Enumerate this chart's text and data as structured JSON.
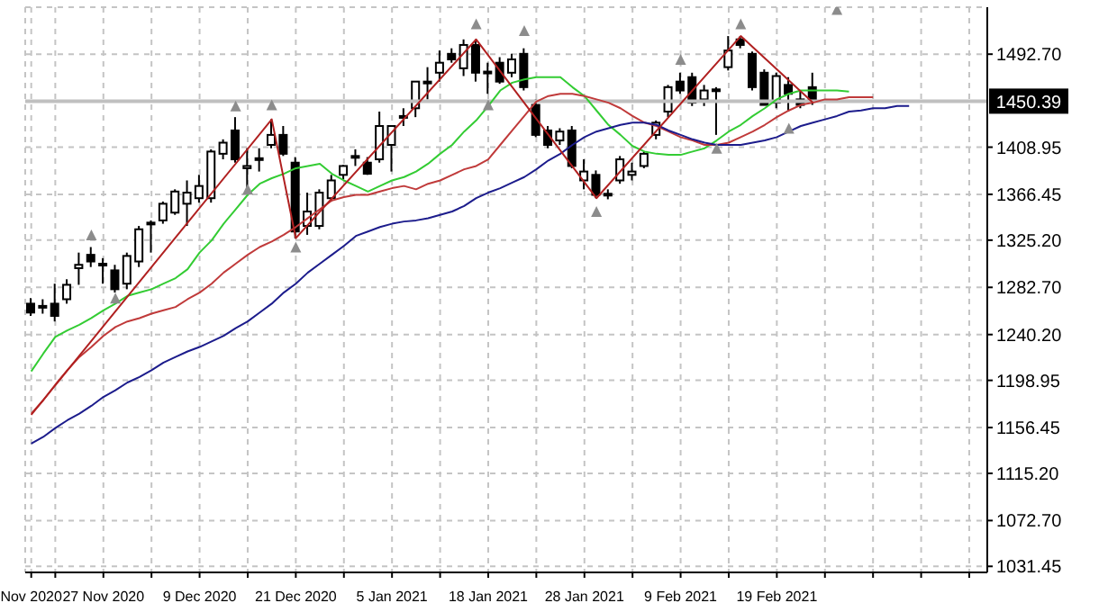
{
  "chart_data": {
    "type": "candlestick",
    "categories": [
      "Nov 2020",
      null,
      null,
      null,
      null,
      null,
      "27 Nov 2020",
      null,
      null,
      null,
      null,
      null,
      null,
      null,
      "9 Dec 2020",
      null,
      null,
      null,
      null,
      null,
      null,
      null,
      "21 Dec 2020",
      null,
      null,
      null,
      null,
      null,
      null,
      null,
      "5 Jan 2021",
      null,
      null,
      null,
      null,
      null,
      null,
      null,
      "18 Jan 2021",
      null,
      null,
      null,
      null,
      null,
      null,
      null,
      "28 Jan 2021",
      null,
      null,
      null,
      null,
      null,
      null,
      null,
      "9 Feb 2021",
      null,
      null,
      null,
      null,
      null,
      null,
      null,
      "19 Feb 2021",
      null,
      null,
      null,
      null,
      null,
      null,
      null,
      null,
      null,
      null,
      null,
      null,
      null,
      null,
      null,
      null,
      null
    ],
    "ohlc": [
      [
        1268,
        1273,
        1257,
        1260
      ],
      [
        1265,
        1272,
        1259,
        1266
      ],
      [
        1268,
        1286,
        1252,
        1257
      ],
      [
        1272,
        1290,
        1268,
        1285
      ],
      [
        1300,
        1314,
        1285,
        1303
      ],
      [
        1312,
        1319,
        1301,
        1306
      ],
      [
        1304,
        1309,
        1286,
        1303
      ],
      [
        1298,
        1303,
        1278,
        1281
      ],
      [
        1286,
        1314,
        1281,
        1311
      ],
      [
        1306,
        1338,
        1301,
        1335
      ],
      [
        1340,
        1343,
        1314,
        1341
      ],
      [
        1343,
        1360,
        1340,
        1358
      ],
      [
        1350,
        1371,
        1348,
        1369
      ],
      [
        1358,
        1379,
        1338,
        1368
      ],
      [
        1363,
        1384,
        1359,
        1374
      ],
      [
        1363,
        1407,
        1359,
        1405
      ],
      [
        1403,
        1416,
        1398,
        1413
      ],
      [
        1424,
        1436,
        1395,
        1398
      ],
      [
        1390,
        1408,
        1371,
        1392
      ],
      [
        1398,
        1408,
        1387,
        1399
      ],
      [
        1411,
        1434,
        1408,
        1420
      ],
      [
        1420,
        1428,
        1401,
        1403
      ],
      [
        1395,
        1400,
        1327,
        1333
      ],
      [
        1338,
        1368,
        1330,
        1351
      ],
      [
        1338,
        1371,
        1335,
        1368
      ],
      [
        1363,
        1384,
        1360,
        1379
      ],
      [
        1384,
        1393,
        1380,
        1392
      ],
      [
        1400,
        1407,
        1392,
        1401
      ],
      [
        1395,
        1400,
        1384,
        1385
      ],
      [
        1398,
        1441,
        1395,
        1428
      ],
      [
        1411,
        1428,
        1387,
        1428
      ],
      [
        1436,
        1444,
        1428,
        1437
      ],
      [
        1444,
        1468,
        1436,
        1468
      ],
      [
        1467,
        1481,
        1452,
        1468
      ],
      [
        1476,
        1496,
        1468,
        1485
      ],
      [
        1493,
        1498,
        1485,
        1488
      ],
      [
        1480,
        1506,
        1473,
        1501
      ],
      [
        1501,
        1506,
        1468,
        1476
      ],
      [
        1476,
        1485,
        1457,
        1477
      ],
      [
        1485,
        1490,
        1466,
        1468
      ],
      [
        1476,
        1493,
        1472,
        1488
      ],
      [
        1493,
        1498,
        1460,
        1463
      ],
      [
        1447,
        1452,
        1418,
        1420
      ],
      [
        1424,
        1428,
        1408,
        1411
      ],
      [
        1415,
        1426,
        1411,
        1423
      ],
      [
        1424,
        1428,
        1390,
        1392
      ],
      [
        1379,
        1398,
        1371,
        1387
      ],
      [
        1384,
        1388,
        1363,
        1366
      ],
      [
        1366,
        1371,
        1362,
        1367
      ],
      [
        1379,
        1401,
        1376,
        1398
      ],
      [
        1384,
        1395,
        1379,
        1387
      ],
      [
        1392,
        1405,
        1390,
        1403
      ],
      [
        1420,
        1433,
        1416,
        1431
      ],
      [
        1441,
        1465,
        1436,
        1463
      ],
      [
        1468,
        1476,
        1457,
        1460
      ],
      [
        1472,
        1476,
        1446,
        1449
      ],
      [
        1452,
        1465,
        1446,
        1460
      ],
      [
        1460,
        1463,
        1420,
        1461
      ],
      [
        1481,
        1509,
        1478,
        1496
      ],
      [
        1506,
        1509,
        1498,
        1501
      ],
      [
        1493,
        1495,
        1460,
        1463
      ],
      [
        1476,
        1479,
        1447,
        1447
      ],
      [
        1449,
        1476,
        1444,
        1473
      ],
      [
        1465,
        1472,
        1441,
        1457
      ],
      [
        1452,
        1460,
        1444,
        1447
      ],
      [
        1463,
        1476,
        1447,
        1450
      ],
      null,
      null,
      null,
      null,
      null,
      null,
      null,
      null,
      null,
      null,
      null,
      null,
      null,
      null
    ],
    "series": [
      {
        "type": "line",
        "color": "#33cc33",
        "values": [
          1207,
          1223,
          1238,
          1244,
          1249,
          1255,
          1262,
          1268,
          1275,
          1278,
          1281,
          1286,
          1291,
          1299,
          1314,
          1325,
          1340,
          1353,
          1366,
          1376,
          1381,
          1385,
          1390,
          1392,
          1394,
          1385,
          1379,
          1374,
          1369,
          1374,
          1379,
          1382,
          1387,
          1394,
          1403,
          1411,
          1423,
          1433,
          1446,
          1460,
          1467,
          1470,
          1472,
          1472,
          1472,
          1463,
          1455,
          1442,
          1429,
          1420,
          1410,
          1405,
          1403,
          1402,
          1402,
          1405,
          1408,
          1415,
          1423,
          1429,
          1437,
          1444,
          1452,
          1457,
          1460,
          1460,
          1460,
          1460,
          1459,
          null,
          null,
          null,
          null,
          null,
          null,
          null,
          null,
          null,
          null,
          null
        ]
      },
      {
        "type": "line",
        "color": "#c03a3a",
        "values": [
          1169,
          1181,
          1195,
          1208,
          1220,
          1229,
          1239,
          1247,
          1252,
          1255,
          1259,
          1262,
          1265,
          1272,
          1278,
          1286,
          1296,
          1304,
          1312,
          1319,
          1324,
          1330,
          1337,
          1345,
          1353,
          1361,
          1364,
          1366,
          1366,
          1369,
          1372,
          1374,
          1371,
          1376,
          1379,
          1384,
          1389,
          1392,
          1398,
          1411,
          1424,
          1437,
          1450,
          1455,
          1457,
          1457,
          1455,
          1452,
          1449,
          1444,
          1437,
          1431,
          1428,
          1423,
          1418,
          1415,
          1411,
          1411,
          1413,
          1418,
          1423,
          1429,
          1436,
          1442,
          1447,
          1449,
          1452,
          1452,
          1454,
          1454,
          1454,
          null,
          null,
          null,
          null,
          null,
          null,
          null,
          null,
          null
        ]
      },
      {
        "type": "line",
        "color": "#1c1c8c",
        "values": [
          1142,
          1148,
          1156,
          1163,
          1169,
          1176,
          1184,
          1190,
          1197,
          1202,
          1208,
          1215,
          1220,
          1225,
          1229,
          1234,
          1239,
          1246,
          1252,
          1260,
          1268,
          1278,
          1286,
          1296,
          1304,
          1312,
          1320,
          1329,
          1333,
          1337,
          1340,
          1342,
          1343,
          1345,
          1348,
          1351,
          1356,
          1363,
          1368,
          1372,
          1377,
          1382,
          1389,
          1397,
          1403,
          1411,
          1418,
          1423,
          1426,
          1429,
          1431,
          1431,
          1429,
          1424,
          1420,
          1416,
          1413,
          1411,
          1411,
          1411,
          1413,
          1415,
          1418,
          1423,
          1428,
          1431,
          1434,
          1437,
          1441,
          1442,
          1444,
          1444,
          1446,
          1446,
          null,
          null,
          null,
          null,
          null,
          null
        ]
      },
      {
        "type": "line",
        "color": "#b02020",
        "values": [
          1168,
          null,
          null,
          null,
          null,
          null,
          null,
          null,
          null,
          null,
          null,
          null,
          null,
          null,
          null,
          null,
          null,
          null,
          null,
          null,
          1434,
          null,
          1327,
          null,
          null,
          null,
          null,
          null,
          null,
          null,
          null,
          null,
          null,
          null,
          null,
          null,
          null,
          1506,
          null,
          null,
          null,
          null,
          null,
          null,
          null,
          null,
          null,
          1363,
          null,
          null,
          null,
          null,
          null,
          null,
          null,
          null,
          null,
          null,
          null,
          1509,
          null,
          null,
          null,
          null,
          null,
          1449,
          null,
          null,
          null,
          null,
          null,
          null,
          null,
          null,
          null,
          null,
          null,
          null,
          null,
          null
        ]
      },
      {
        "type": "scatter",
        "color": "#8c8c8c",
        "marker": "triangle",
        "values": [
          null,
          null,
          null,
          null,
          null,
          1330,
          null,
          1273,
          null,
          null,
          null,
          null,
          null,
          null,
          null,
          null,
          null,
          1446,
          1371,
          null,
          1447,
          null,
          1319,
          null,
          null,
          null,
          null,
          null,
          null,
          null,
          null,
          null,
          null,
          null,
          null,
          null,
          null,
          1520,
          1447,
          null,
          null,
          1514,
          null,
          null,
          null,
          null,
          null,
          1351,
          null,
          null,
          null,
          null,
          null,
          null,
          1488,
          null,
          null,
          1408,
          null,
          1520,
          null,
          null,
          null,
          1426,
          null,
          null,
          null,
          1533,
          null,
          null,
          null,
          null,
          null,
          null,
          null,
          null,
          null,
          null,
          null,
          null
        ]
      }
    ],
    "ylim": [
      1026,
      1535
    ],
    "yticks": [
      {
        "value": 1031.45,
        "label": "1031.45"
      },
      {
        "value": 1072.7,
        "label": "1072.70"
      },
      {
        "value": 1115.2,
        "label": "1115.20"
      },
      {
        "value": 1156.45,
        "label": "1156.45"
      },
      {
        "value": 1198.95,
        "label": "1198.95"
      },
      {
        "value": 1240.2,
        "label": "1240.20"
      },
      {
        "value": 1282.7,
        "label": "1282.70"
      },
      {
        "value": 1325.2,
        "label": "1325.20"
      },
      {
        "value": 1366.45,
        "label": "1366.45"
      },
      {
        "value": 1408.95,
        "label": "1408.95"
      },
      {
        "value": 1492.7,
        "label": "1492.70"
      }
    ],
    "ref_lines": [
      {
        "axis": "y",
        "value": 1450.39,
        "label": "1450.39",
        "color": "#c0c0c0"
      }
    ],
    "grid": true
  }
}
